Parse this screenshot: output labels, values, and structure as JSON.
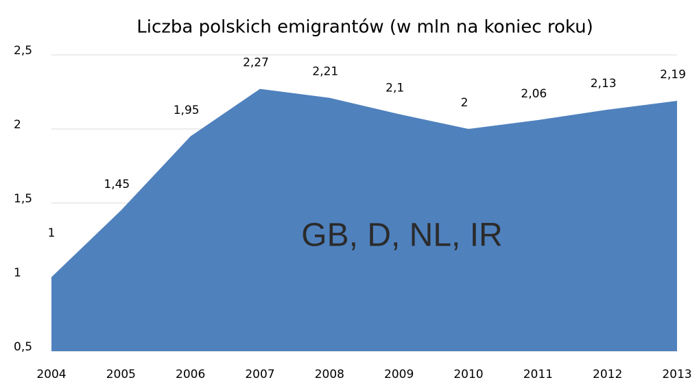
{
  "chart_data": {
    "type": "area",
    "title": "Liczba polskich emigrantów (w mln na koniec roku)",
    "annotation": "GB, D, NL, IR",
    "categories": [
      "2004",
      "2005",
      "2006",
      "2007",
      "2008",
      "2009",
      "2010",
      "2011",
      "2012",
      "2013"
    ],
    "values": [
      1,
      1.45,
      1.95,
      2.27,
      2.21,
      2.1,
      2,
      2.06,
      2.13,
      2.19
    ],
    "value_labels": [
      "1",
      "1,45",
      "1,95",
      "2,27",
      "2,21",
      "2,1",
      "2",
      "2,06",
      "2,13",
      "2,19"
    ],
    "color": "#4f81bd",
    "ylim": [
      0.5,
      2.5
    ],
    "yticks": [
      {
        "value": 0.5,
        "label": "0,5"
      },
      1,
      {
        "value": 1.5,
        "label": "1,5"
      },
      2,
      {
        "value": 2.5,
        "label": "2,5"
      }
    ],
    "grid": true
  }
}
